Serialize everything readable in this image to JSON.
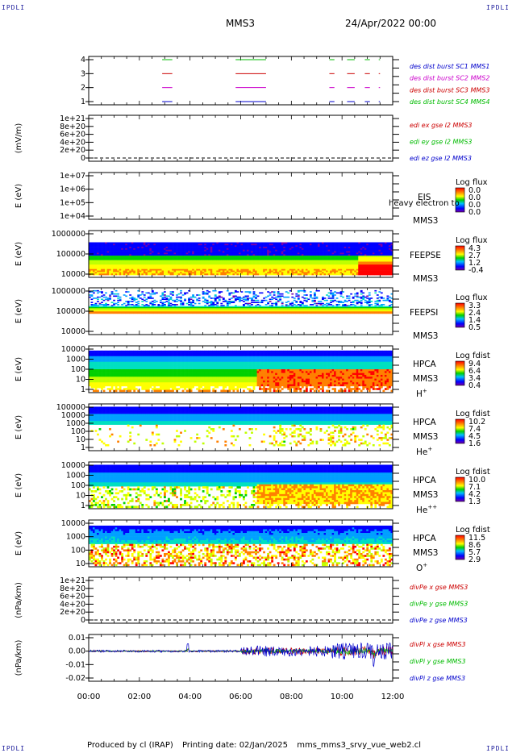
{
  "corner_labels": {
    "top_left": "IPDLI",
    "top_right": "IPDLI",
    "bottom_left": "IPDLI",
    "bottom_right": "IPDLI"
  },
  "header": {
    "title": "MMS3",
    "datetime": "24/Apr/2022 00:00"
  },
  "footer": {
    "producer": "Produced by cl (IRAP)",
    "printed": "Printing date: 02/Jan/2025",
    "file": "mms_mms3_srvy_vue_web2.cl"
  },
  "colors": {
    "rainbow": [
      "#7a00a8",
      "#0000ff",
      "#00a0ff",
      "#00e0c0",
      "#00d000",
      "#c0ff00",
      "#ffff00",
      "#ff8000",
      "#ff0000"
    ],
    "sc1": "#0000cc",
    "sc2": "#cc00cc",
    "sc3": "#cc0000",
    "sc4": "#00bb00"
  },
  "chart_data": [
    {
      "type": "timeline",
      "id": "burst",
      "yticks": [
        "4",
        "3",
        "2",
        "1"
      ],
      "legend": [
        {
          "text": "des dist burst SC1 MMS1",
          "color": "#0000cc"
        },
        {
          "text": "des dist burst SC2 MMS2",
          "color": "#cc00cc"
        },
        {
          "text": "des dist burst SC3 MMS3",
          "color": "#cc0000"
        },
        {
          "text": "des dist burst SC4 MMS4",
          "color": "#00bb00"
        }
      ],
      "segments_hours": [
        [
          2.9,
          3.3
        ],
        [
          5.8,
          7.0
        ],
        [
          9.5,
          9.7
        ],
        [
          10.2,
          10.5
        ],
        [
          10.9,
          11.1
        ],
        [
          11.45,
          11.5
        ]
      ]
    },
    {
      "type": "line",
      "id": "edi",
      "ylabel": "(mV/m)",
      "yticks": [
        "1e+21",
        "8e+20",
        "6e+20",
        "4e+20",
        "2e+20",
        "0"
      ],
      "legend": [
        {
          "text": "edi ex gse l2 MMS3",
          "color": "#cc0000"
        },
        {
          "text": "edi ey gse l2 MMS3",
          "color": "#00bb00"
        },
        {
          "text": "edi ez gse l2 MMS3",
          "color": "#0000cc"
        }
      ]
    },
    {
      "type": "heatmap",
      "id": "eis",
      "ylabel": "E (eV)",
      "yticks": [
        "1e+07",
        "1e+06",
        "1e+05",
        "1e+04"
      ],
      "inst": "EIS",
      "sc": "MMS3",
      "label_extra": "heavy electron to",
      "cb_title": "Log flux",
      "cb_ticks": [
        "0.0",
        "0.0",
        "0.0",
        "0.0"
      ],
      "empty": true
    },
    {
      "type": "heatmap",
      "id": "feepse",
      "ylabel": "E (eV)",
      "yticks": [
        "1000000",
        "100000",
        "10000"
      ],
      "inst": "FEEPSE",
      "sc": "MMS3",
      "cb_title": "Log flux",
      "cb_ticks": [
        "4.3",
        "2.7",
        "1.2",
        "-0.4"
      ],
      "variant": "feepse"
    },
    {
      "type": "heatmap",
      "id": "feepsi",
      "ylabel": "E (eV)",
      "yticks": [
        "1000000",
        "100000",
        "10000"
      ],
      "inst": "FEEPSI",
      "sc": "MMS3",
      "cb_title": "Log flux",
      "cb_ticks": [
        "3.3",
        "2.4",
        "1.4",
        "0.5"
      ],
      "variant": "feepsi"
    },
    {
      "type": "heatmap",
      "id": "hpca_h",
      "ylabel": "E (eV)",
      "yticks": [
        "10000",
        "1000",
        "100",
        "10",
        "1"
      ],
      "inst": "HPCA",
      "sc": "MMS3",
      "species": "H",
      "species_sup": "+",
      "cb_title": "Log fdist",
      "cb_ticks": [
        "9.4",
        "6.4",
        "3.4",
        "0.4"
      ],
      "variant": "h"
    },
    {
      "type": "heatmap",
      "id": "hpca_he",
      "ylabel": "E (eV)",
      "yticks": [
        "100000",
        "10000",
        "1000",
        "100",
        "10",
        "1"
      ],
      "inst": "HPCA",
      "sc": "MMS3",
      "species": "He",
      "species_sup": "+",
      "cb_title": "Log fdist",
      "cb_ticks": [
        "10.2",
        "7.4",
        "4.5",
        "1.6"
      ],
      "variant": "he"
    },
    {
      "type": "heatmap",
      "id": "hpca_hepp",
      "ylabel": "E (eV)",
      "yticks": [
        "10000",
        "1000",
        "100",
        "10",
        "1"
      ],
      "inst": "HPCA",
      "sc": "MMS3",
      "species": "He",
      "species_sup": "++",
      "cb_title": "Log fdist",
      "cb_ticks": [
        "10.0",
        "7.1",
        "4.2",
        "1.3"
      ],
      "variant": "hepp"
    },
    {
      "type": "heatmap",
      "id": "hpca_o",
      "ylabel": "E (eV)",
      "yticks": [
        "10000",
        "1000",
        "100",
        "10"
      ],
      "inst": "HPCA",
      "sc": "MMS3",
      "species": "O",
      "species_sup": "+",
      "cb_title": "Log fdist",
      "cb_ticks": [
        "11.5",
        "8.6",
        "5.7",
        "2.9"
      ],
      "variant": "o"
    },
    {
      "type": "line",
      "id": "divpe",
      "ylabel": "(nPa/km)",
      "yticks": [
        "1e+21",
        "8e+20",
        "6e+20",
        "4e+20",
        "2e+20",
        "0"
      ],
      "legend": [
        {
          "text": "divPe x gse MMS3",
          "color": "#cc0000"
        },
        {
          "text": "divPe y gse MMS3",
          "color": "#00bb00"
        },
        {
          "text": "divPe z gse MMS3",
          "color": "#0000cc"
        }
      ]
    },
    {
      "type": "line",
      "id": "divpi",
      "ylabel": "(nPa/km)",
      "yticks": [
        "0.01",
        "0.00",
        "-0.01",
        "-0.02"
      ],
      "ylim": [
        -0.02,
        0.015
      ],
      "legend": [
        {
          "text": "divPi x gse MMS3",
          "color": "#cc0000"
        },
        {
          "text": "divPi y gse MMS3",
          "color": "#00bb00"
        },
        {
          "text": "divPi z gse MMS3",
          "color": "#0000cc"
        }
      ]
    }
  ],
  "x_axis": {
    "ticks": [
      "00:00",
      "02:00",
      "04:00",
      "06:00",
      "08:00",
      "10:00",
      "12:00"
    ],
    "range_hours": [
      0,
      12
    ]
  }
}
